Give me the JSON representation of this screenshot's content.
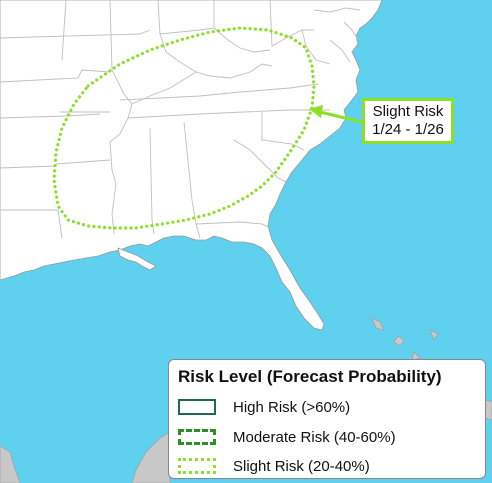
{
  "colors": {
    "water": "#5fd0ee",
    "land": "#ffffff",
    "border_lines": "#bfbfbf",
    "foreign_land": "#c8c8c8",
    "high_risk": "#1d6b4c",
    "moderate_risk": "#2b8f22",
    "slight_risk": "#8ce02a"
  },
  "callout": {
    "line1": "Slight Risk",
    "line2": "1/24 - 1/26"
  },
  "legend": {
    "title": "Risk Level (Forecast Probability)",
    "items": [
      {
        "label": "High Risk (>60%)",
        "style": "solid"
      },
      {
        "label": "Moderate Risk (40-60%)",
        "style": "dashed"
      },
      {
        "label": "Slight Risk (20-40%)",
        "style": "dotted"
      }
    ]
  }
}
